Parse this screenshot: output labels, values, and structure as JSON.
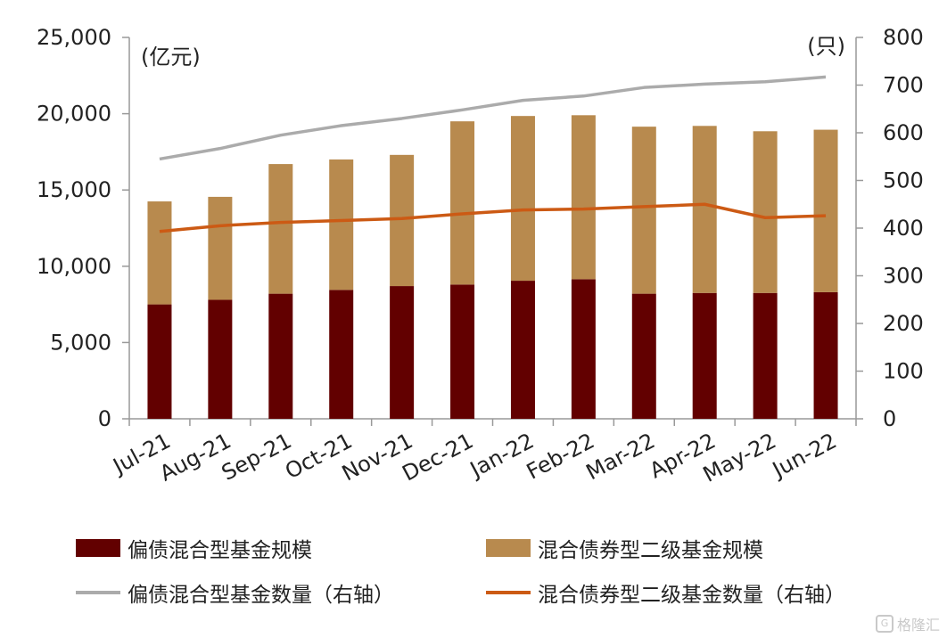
{
  "chart_data": {
    "type": "bar",
    "categories": [
      "Jul-21",
      "Aug-21",
      "Sep-21",
      "Oct-21",
      "Nov-21",
      "Dec-21",
      "Jan-22",
      "Feb-22",
      "Mar-22",
      "Apr-22",
      "May-22",
      "Jun-22"
    ],
    "left_axis": {
      "unit": "(亿元)",
      "ylim": [
        0,
        25000
      ],
      "ticks": [
        "0",
        "5,000",
        "10,000",
        "15,000",
        "20,000",
        "25,000"
      ],
      "tick_values": [
        0,
        5000,
        10000,
        15000,
        20000,
        25000
      ]
    },
    "right_axis": {
      "unit": "(只)",
      "ylim": [
        0,
        800
      ],
      "ticks": [
        "0",
        "100",
        "200",
        "300",
        "400",
        "500",
        "600",
        "700",
        "800"
      ],
      "tick_values": [
        0,
        100,
        200,
        300,
        400,
        500,
        600,
        700,
        800
      ]
    },
    "stacked_bars": [
      {
        "name": "偏债混合型基金规模",
        "color": "#620000",
        "values": [
          7500,
          7800,
          8200,
          8450,
          8700,
          8800,
          9050,
          9150,
          8200,
          8250,
          8250,
          8300
        ]
      },
      {
        "name": "混合债券型二级基金规模",
        "color": "#b88a4e",
        "values": [
          6750,
          6750,
          8500,
          8550,
          8600,
          10700,
          10800,
          10750,
          10950,
          10950,
          10600,
          10650
        ]
      }
    ],
    "lines": [
      {
        "name": "偏债混合型基金数量（右轴）",
        "color": "#ababab",
        "axis": "right",
        "values": [
          545,
          567,
          595,
          615,
          630,
          648,
          668,
          677,
          695,
          702,
          707,
          717
        ]
      },
      {
        "name": "混合债券型二级基金数量（右轴）",
        "color": "#cc5a14",
        "axis": "right",
        "values": [
          393,
          405,
          412,
          416,
          420,
          430,
          438,
          440,
          445,
          450,
          422,
          426
        ]
      }
    ],
    "legend_position": "bottom",
    "grid": false
  },
  "legend_items": [
    {
      "label": "偏债混合型基金规模",
      "kind": "box",
      "color": "#620000"
    },
    {
      "label": "混合债券型二级基金规模",
      "kind": "box",
      "color": "#b88a4e"
    },
    {
      "label": "偏债混合型基金数量（右轴）",
      "kind": "line",
      "color": "#ababab"
    },
    {
      "label": "混合债券型二级基金数量（右轴）",
      "kind": "line",
      "color": "#cc5a14"
    }
  ],
  "watermark": {
    "text": "格隆汇",
    "icon": "gelonghui-logo-icon"
  }
}
